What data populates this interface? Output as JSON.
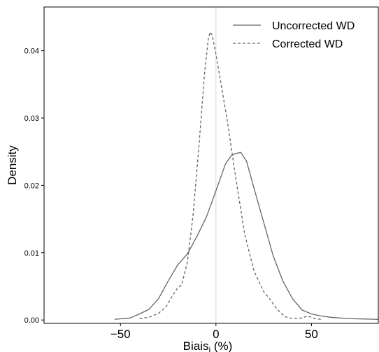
{
  "chart_data": {
    "type": "line",
    "title": "",
    "xlabel": "Biais",
    "xlabel_subscript": "i",
    "xlabel_suffix": " (%)",
    "ylabel": "Density",
    "xlim": [
      -90,
      85
    ],
    "ylim": [
      -0.0005,
      0.0465
    ],
    "xticks": [
      -50,
      0,
      50
    ],
    "xtick_labels": [
      "−50",
      "0",
      "50"
    ],
    "yticks": [
      0.0,
      0.01,
      0.02,
      0.03,
      0.04
    ],
    "ytick_labels": [
      "0.00",
      "0.01",
      "0.02",
      "0.03",
      "0.04"
    ],
    "grid": false,
    "vertical_reference_line": 0,
    "legend_position": "top-right",
    "series": [
      {
        "name": "Uncorrected WD",
        "style": "solid",
        "color": "#666666",
        "x": [
          -53,
          -45,
          -40,
          -35,
          -30,
          -25,
          -20,
          -15,
          -10,
          -5,
          0,
          5,
          8,
          10,
          13,
          16,
          20,
          25,
          30,
          35,
          40,
          45,
          50,
          55,
          60,
          70,
          85
        ],
        "y": [
          0.0001,
          0.0003,
          0.0009,
          0.0016,
          0.0032,
          0.0058,
          0.0082,
          0.0098,
          0.0124,
          0.0153,
          0.0192,
          0.0232,
          0.0244,
          0.0247,
          0.0249,
          0.0236,
          0.0195,
          0.0145,
          0.0095,
          0.0058,
          0.0032,
          0.0015,
          0.0009,
          0.0006,
          0.0004,
          0.0002,
          0.0001
        ]
      },
      {
        "name": "Corrected WD",
        "style": "dashed",
        "color": "#666666",
        "x": [
          -40,
          -35,
          -30,
          -26,
          -23,
          -20,
          -18,
          -15,
          -12,
          -9,
          -6,
          -4,
          -3,
          -2,
          0,
          3,
          6,
          10,
          15,
          20,
          25,
          28,
          32,
          36,
          40,
          45,
          48,
          52,
          55
        ],
        "y": [
          0.0002,
          0.0004,
          0.001,
          0.002,
          0.0035,
          0.0048,
          0.0052,
          0.0085,
          0.0155,
          0.0255,
          0.0365,
          0.0418,
          0.0428,
          0.0423,
          0.0395,
          0.0345,
          0.0295,
          0.0218,
          0.0128,
          0.0072,
          0.0042,
          0.0032,
          0.0016,
          0.0005,
          0.0002,
          0.0003,
          0.0006,
          0.0002,
          0.0001
        ]
      }
    ]
  }
}
